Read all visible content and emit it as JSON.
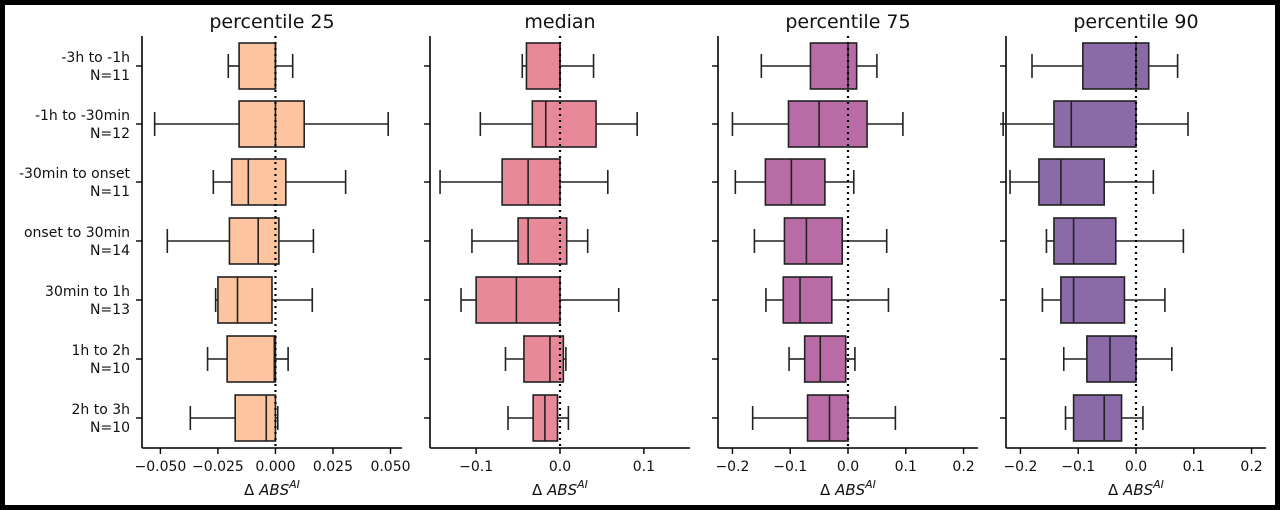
{
  "chart_data": [
    {
      "type": "boxplot",
      "title": "percentile 25",
      "xlabel": "Δ ABS^AI",
      "xlim": [
        -0.058,
        0.055
      ],
      "ticks": [
        -0.05,
        -0.025,
        0.0,
        0.025,
        0.05
      ],
      "tick_labels": [
        "−0.050",
        "−0.025",
        "0.000",
        "0.025",
        "0.050"
      ],
      "show_row_labels": true,
      "color": "#fdc4a0",
      "refline": 0.0,
      "boxes": [
        {
          "whislo": -0.0205,
          "q1": -0.0158,
          "med": 0.0,
          "q3": 0.0,
          "whishi": 0.0075
        },
        {
          "whislo": -0.0525,
          "q1": -0.0158,
          "med": 0.0,
          "q3": 0.0125,
          "whishi": 0.049
        },
        {
          "whislo": -0.027,
          "q1": -0.019,
          "med": -0.0118,
          "q3": 0.0045,
          "whishi": 0.0305
        },
        {
          "whislo": -0.047,
          "q1": -0.02,
          "med": -0.0075,
          "q3": 0.0015,
          "whishi": 0.0165
        },
        {
          "whislo": -0.026,
          "q1": -0.025,
          "med": -0.0165,
          "q3": -0.0015,
          "whishi": 0.016
        },
        {
          "whislo": -0.0295,
          "q1": -0.021,
          "med": -0.0005,
          "q3": 0.0,
          "whishi": 0.0055
        },
        {
          "whislo": -0.037,
          "q1": -0.0175,
          "med": -0.004,
          "q3": 0.0,
          "whishi": 0.001
        }
      ]
    },
    {
      "type": "boxplot",
      "title": "median",
      "xlabel": "Δ ABS^AI",
      "xlim": [
        -0.155,
        0.155
      ],
      "ticks": [
        -0.1,
        0.0,
        0.1
      ],
      "tick_labels": [
        "−0.1",
        "0.0",
        "0.1"
      ],
      "show_row_labels": false,
      "color": "#e8899a",
      "refline": 0.0,
      "boxes": [
        {
          "whislo": -0.045,
          "q1": -0.04,
          "med": 0.0,
          "q3": 0.0,
          "whishi": 0.04
        },
        {
          "whislo": -0.095,
          "q1": -0.033,
          "med": -0.017,
          "q3": 0.043,
          "whishi": 0.092
        },
        {
          "whislo": -0.143,
          "q1": -0.069,
          "med": -0.038,
          "q3": 0.0,
          "whishi": 0.057
        },
        {
          "whislo": -0.105,
          "q1": -0.05,
          "med": -0.038,
          "q3": 0.008,
          "whishi": 0.033
        },
        {
          "whislo": -0.118,
          "q1": -0.1,
          "med": -0.052,
          "q3": 0.0,
          "whishi": 0.07
        },
        {
          "whislo": -0.065,
          "q1": -0.043,
          "med": -0.012,
          "q3": 0.004,
          "whishi": 0.007
        },
        {
          "whislo": -0.062,
          "q1": -0.032,
          "med": -0.018,
          "q3": -0.003,
          "whishi": 0.01
        }
      ]
    },
    {
      "type": "boxplot",
      "title": "percentile 75",
      "xlabel": "Δ ABS^AI",
      "xlim": [
        -0.225,
        0.225
      ],
      "ticks": [
        -0.2,
        -0.1,
        0.0,
        0.1,
        0.2
      ],
      "tick_labels": [
        "−0.2",
        "−0.1",
        "0.0",
        "0.1",
        "0.2"
      ],
      "show_row_labels": false,
      "color": "#b96ba6",
      "refline": 0.0,
      "boxes": [
        {
          "whislo": -0.15,
          "q1": -0.065,
          "med": 0.0,
          "q3": 0.015,
          "whishi": 0.05
        },
        {
          "whislo": -0.2,
          "q1": -0.103,
          "med": -0.05,
          "q3": 0.033,
          "whishi": 0.095
        },
        {
          "whislo": -0.195,
          "q1": -0.143,
          "med": -0.098,
          "q3": -0.04,
          "whishi": 0.01
        },
        {
          "whislo": -0.162,
          "q1": -0.11,
          "med": -0.072,
          "q3": -0.01,
          "whishi": 0.067
        },
        {
          "whislo": -0.142,
          "q1": -0.112,
          "med": -0.083,
          "q3": -0.028,
          "whishi": 0.07
        },
        {
          "whislo": -0.102,
          "q1": -0.075,
          "med": -0.048,
          "q3": -0.004,
          "whishi": 0.012
        },
        {
          "whislo": -0.165,
          "q1": -0.07,
          "med": -0.032,
          "q3": 0.0,
          "whishi": 0.082
        }
      ]
    },
    {
      "type": "boxplot",
      "title": "percentile 90",
      "xlabel": "Δ ABS^AI",
      "xlim": [
        -0.225,
        0.225
      ],
      "ticks": [
        -0.2,
        -0.1,
        0.0,
        0.1,
        0.2
      ],
      "tick_labels": [
        "−0.2",
        "−0.1",
        "0.0",
        "0.1",
        "0.2"
      ],
      "show_row_labels": false,
      "color": "#8b6aa8",
      "refline": 0.0,
      "boxes": [
        {
          "whislo": -0.18,
          "q1": -0.092,
          "med": 0.0,
          "q3": 0.022,
          "whishi": 0.072
        },
        {
          "whislo": -0.23,
          "q1": -0.142,
          "med": -0.112,
          "q3": 0.0,
          "whishi": 0.09
        },
        {
          "whislo": -0.218,
          "q1": -0.168,
          "med": -0.13,
          "q3": -0.055,
          "whishi": 0.03
        },
        {
          "whislo": -0.155,
          "q1": -0.142,
          "med": -0.108,
          "q3": -0.035,
          "whishi": 0.082
        },
        {
          "whislo": -0.162,
          "q1": -0.13,
          "med": -0.108,
          "q3": -0.02,
          "whishi": 0.05
        },
        {
          "whislo": -0.125,
          "q1": -0.085,
          "med": -0.045,
          "q3": 0.0,
          "whishi": 0.062
        },
        {
          "whislo": -0.122,
          "q1": -0.108,
          "med": -0.055,
          "q3": -0.025,
          "whishi": 0.012
        }
      ]
    }
  ],
  "row_labels": [
    {
      "line1": "-3h to -1h",
      "line2": "N=11"
    },
    {
      "line1": "-1h to -30min",
      "line2": "N=12"
    },
    {
      "line1": "-30min to onset",
      "line2": "N=11"
    },
    {
      "line1": "onset to 30min",
      "line2": "N=14"
    },
    {
      "line1": "30min to 1h",
      "line2": "N=13"
    },
    {
      "line1": "1h to 2h",
      "line2": "N=10"
    },
    {
      "line1": "2h to 3h",
      "line2": "N=10"
    }
  ]
}
